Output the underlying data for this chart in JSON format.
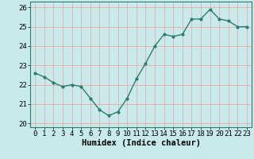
{
  "x": [
    0,
    1,
    2,
    3,
    4,
    5,
    6,
    7,
    8,
    9,
    10,
    11,
    12,
    13,
    14,
    15,
    16,
    17,
    18,
    19,
    20,
    21,
    22,
    23
  ],
  "y": [
    22.6,
    22.4,
    22.1,
    21.9,
    22.0,
    21.9,
    21.3,
    20.7,
    20.4,
    20.6,
    21.3,
    22.3,
    23.1,
    24.0,
    24.6,
    24.5,
    24.6,
    25.4,
    25.4,
    25.9,
    25.4,
    25.3,
    25.0,
    25.0
  ],
  "line_color": "#2e7d6e",
  "marker": "o",
  "marker_size": 2.0,
  "line_width": 1.0,
  "bg_color": "#c8eaea",
  "grid_color": "#e8aaaa",
  "xlabel": "Humidex (Indice chaleur)",
  "xlabel_fontsize": 7.5,
  "ylim": [
    19.8,
    26.3
  ],
  "xlim": [
    -0.5,
    23.5
  ],
  "yticks": [
    20,
    21,
    22,
    23,
    24,
    25,
    26
  ],
  "xticks": [
    0,
    1,
    2,
    3,
    4,
    5,
    6,
    7,
    8,
    9,
    10,
    11,
    12,
    13,
    14,
    15,
    16,
    17,
    18,
    19,
    20,
    21,
    22,
    23
  ],
  "tick_fontsize": 6.5
}
